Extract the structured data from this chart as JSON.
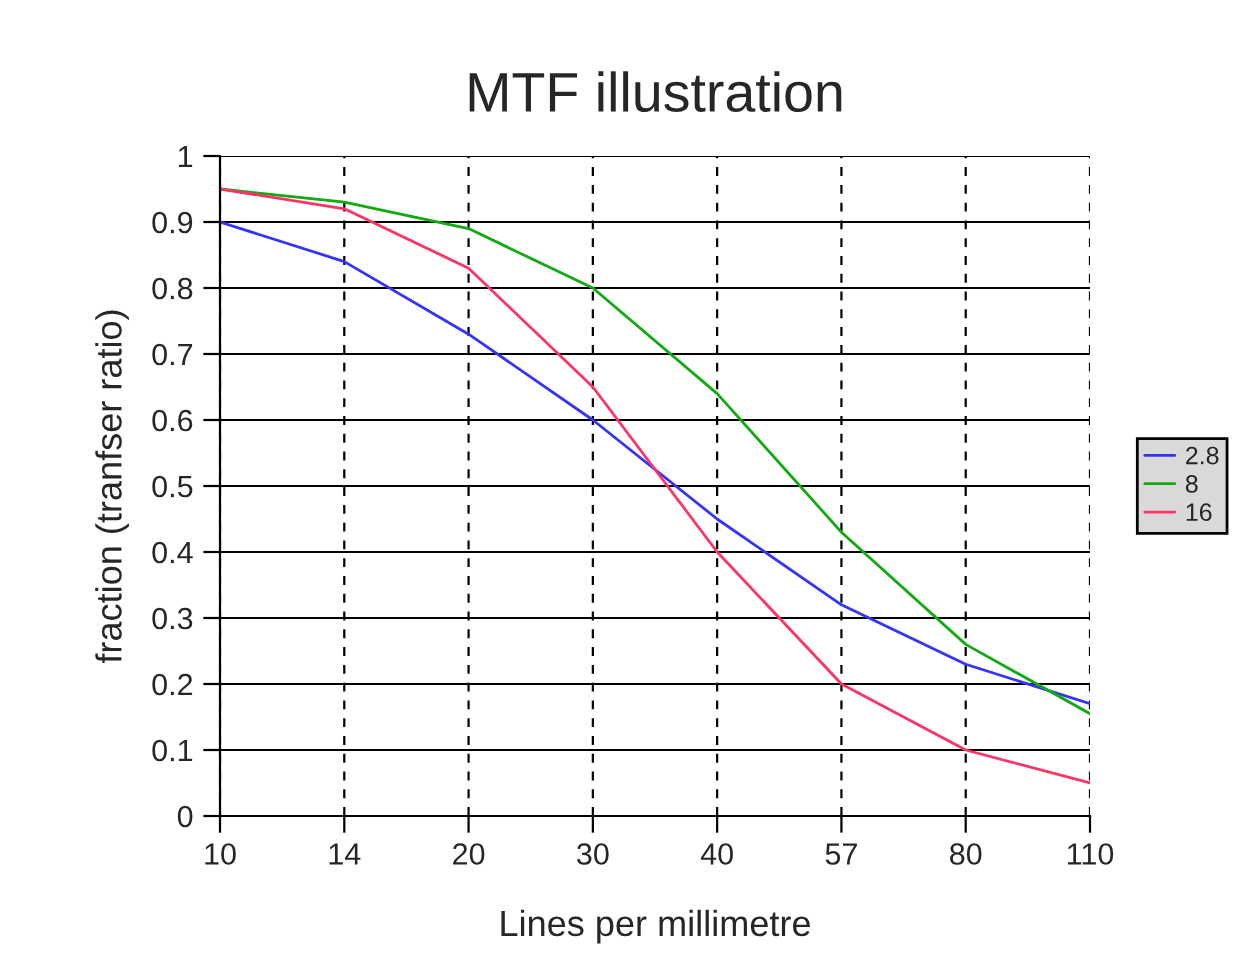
{
  "chart_data": {
    "type": "line",
    "title": "MTF illustration",
    "xlabel": "Lines per millimetre",
    "ylabel": "fraction (tranfser ratio)",
    "categories": [
      "10",
      "14",
      "20",
      "30",
      "40",
      "57",
      "80",
      "110"
    ],
    "series": [
      {
        "name": "2.8",
        "color": "#3333ff",
        "values": [
          0.9,
          0.84,
          0.73,
          0.6,
          0.45,
          0.32,
          0.23,
          0.17
        ]
      },
      {
        "name": "8",
        "color": "#11aa11",
        "values": [
          0.95,
          0.93,
          0.89,
          0.8,
          0.64,
          0.43,
          0.26,
          0.155
        ]
      },
      {
        "name": "16",
        "color": "#ff3366",
        "values": [
          0.95,
          0.92,
          0.83,
          0.65,
          0.4,
          0.2,
          0.1,
          0.05
        ]
      }
    ],
    "ylim": [
      0,
      1
    ],
    "yticks": [
      0,
      0.1,
      0.2,
      0.3,
      0.4,
      0.5,
      0.6,
      0.7,
      0.8,
      0.9,
      1
    ],
    "grid": true,
    "legend": "right",
    "marker": "none",
    "line_style": "solid"
  }
}
